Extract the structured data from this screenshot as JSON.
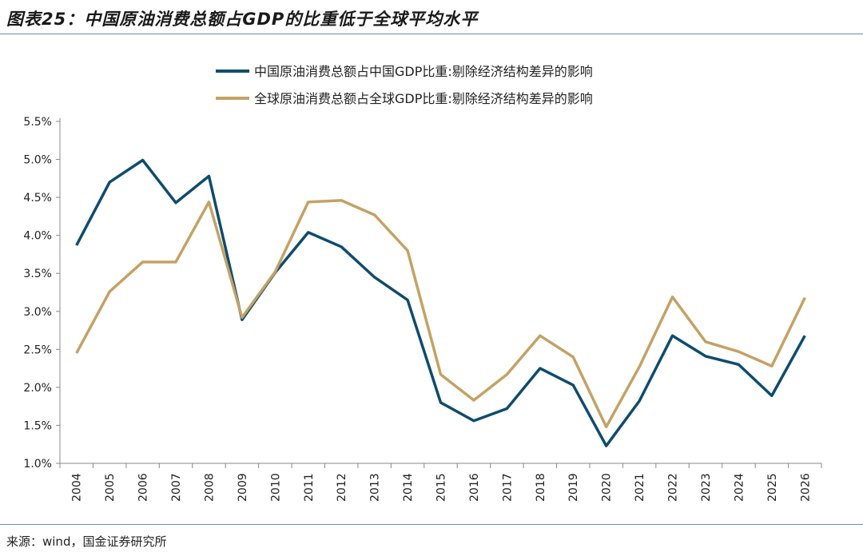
{
  "title": "图表25：中国原油消费总额占GDP的比重低于全球平均水平",
  "source": "来源：wind，国金证券研究所",
  "chart_data": {
    "type": "line",
    "title": "",
    "xlabel": "",
    "ylabel": "",
    "categories": [
      "2004",
      "2005",
      "2006",
      "2007",
      "2008",
      "2009",
      "2010",
      "2011",
      "2012",
      "2013",
      "2014",
      "2015",
      "2016",
      "2017",
      "2018",
      "2019",
      "2020",
      "2021",
      "2022",
      "2023",
      "2024",
      "2025",
      "2026"
    ],
    "ylim": [
      1.0,
      5.5
    ],
    "yticks": [
      "1.0%",
      "1.5%",
      "2.0%",
      "2.5%",
      "3.0%",
      "3.5%",
      "4.0%",
      "4.5%",
      "5.0%",
      "5.5%"
    ],
    "grid": false,
    "legend": "top",
    "series": [
      {
        "name": "中国原油消费总额占中国GDP比重:剔除经济结构差异的影响",
        "color": "#0f4c6e",
        "values": [
          3.87,
          4.7,
          4.99,
          4.43,
          4.78,
          2.89,
          3.51,
          4.04,
          3.85,
          3.45,
          3.15,
          1.8,
          1.56,
          1.72,
          2.25,
          2.03,
          1.23,
          1.82,
          2.68,
          2.41,
          2.3,
          1.89,
          2.68
        ]
      },
      {
        "name": "全球原油消费总额占全球GDP比重:剔除经济结构差异的影响",
        "color": "#c4a265",
        "values": [
          2.45,
          3.26,
          3.65,
          3.65,
          4.44,
          2.92,
          3.52,
          4.44,
          4.46,
          4.27,
          3.8,
          2.17,
          1.83,
          2.17,
          2.68,
          2.4,
          1.48,
          2.27,
          3.19,
          2.6,
          2.47,
          2.28,
          3.18
        ]
      }
    ]
  }
}
